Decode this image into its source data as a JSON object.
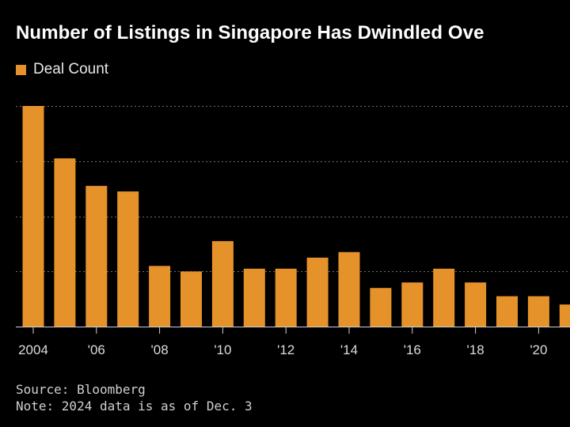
{
  "chart_data": {
    "type": "bar",
    "title": "Number of Listings in Singapore Has Dwindled Ove",
    "legend": [
      "Deal Count"
    ],
    "series": [
      {
        "name": "Deal Count",
        "color": "#e6922b",
        "values": [
          40,
          30.5,
          25.5,
          24.5,
          11,
          10,
          15.5,
          10.5,
          10.5,
          12.5,
          13.5,
          7,
          8,
          10.5,
          8,
          5.5,
          5.5,
          4
        ]
      }
    ],
    "categories": [
      "2004",
      "2005",
      "2006",
      "2007",
      "2008",
      "2009",
      "2010",
      "2011",
      "2012",
      "2013",
      "2014",
      "2015",
      "2016",
      "2017",
      "2018",
      "2019",
      "2020",
      "2021"
    ],
    "tick_labels": [
      {
        "index": 0,
        "label": "2004"
      },
      {
        "index": 2,
        "label": "'06"
      },
      {
        "index": 4,
        "label": "'08"
      },
      {
        "index": 6,
        "label": "'10"
      },
      {
        "index": 8,
        "label": "'12"
      },
      {
        "index": 10,
        "label": "'14"
      },
      {
        "index": 12,
        "label": "'16"
      },
      {
        "index": 14,
        "label": "'18"
      },
      {
        "index": 16,
        "label": "'20"
      }
    ],
    "ylim": [
      0,
      40
    ],
    "gridlines": [
      10,
      20,
      30,
      40
    ],
    "xlabel": "",
    "ylabel": ""
  },
  "footer": {
    "source": "Source: Bloomberg",
    "note": "Note: 2024 data is as of Dec. 3"
  },
  "colors": {
    "bar": "#e6922b",
    "grid": "#6e6e6e",
    "axis": "#cfcfcf",
    "tick_text": "#dcdcdc"
  }
}
